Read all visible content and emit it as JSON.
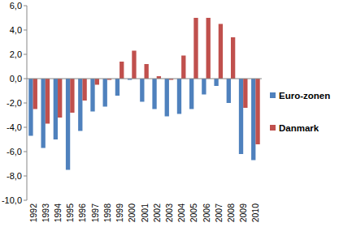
{
  "chart_data": {
    "type": "bar",
    "categories": [
      "1992",
      "1993",
      "1994",
      "1995",
      "1996",
      "1997",
      "1998",
      "1999",
      "2000",
      "2001",
      "2002",
      "2003",
      "2004",
      "2005",
      "2006",
      "2007",
      "2008",
      "2009",
      "2010"
    ],
    "series": [
      {
        "name": "Euro-zonen",
        "color": "#4f81bd",
        "values": [
          -4.7,
          -5.7,
          -5.0,
          -7.5,
          -4.3,
          -2.7,
          -2.3,
          -1.4,
          -0.1,
          -1.9,
          -2.5,
          -3.1,
          -2.9,
          -2.5,
          -1.3,
          -0.6,
          -2.0,
          -6.2,
          -6.7
        ]
      },
      {
        "name": "Danmark",
        "color": "#c0504d",
        "values": [
          -2.5,
          -3.7,
          -3.2,
          -2.8,
          -1.8,
          -0.5,
          -0.1,
          1.4,
          2.3,
          1.2,
          0.2,
          -0.1,
          1.9,
          5.0,
          5.0,
          4.5,
          3.4,
          -2.4,
          -5.4
        ]
      }
    ],
    "ylim": [
      -10,
      6
    ],
    "yticks": [
      {
        "value": -10,
        "label": "-10,0"
      },
      {
        "value": -8,
        "label": "-8,0"
      },
      {
        "value": -6,
        "label": "-6,0"
      },
      {
        "value": -4,
        "label": "-4,0"
      },
      {
        "value": -2,
        "label": "-2,0"
      },
      {
        "value": 0,
        "label": "0,0"
      },
      {
        "value": 2,
        "label": "2,0"
      },
      {
        "value": 4,
        "label": "4,0"
      },
      {
        "value": 6,
        "label": "6,0"
      }
    ],
    "grid": false,
    "legend": "right"
  }
}
